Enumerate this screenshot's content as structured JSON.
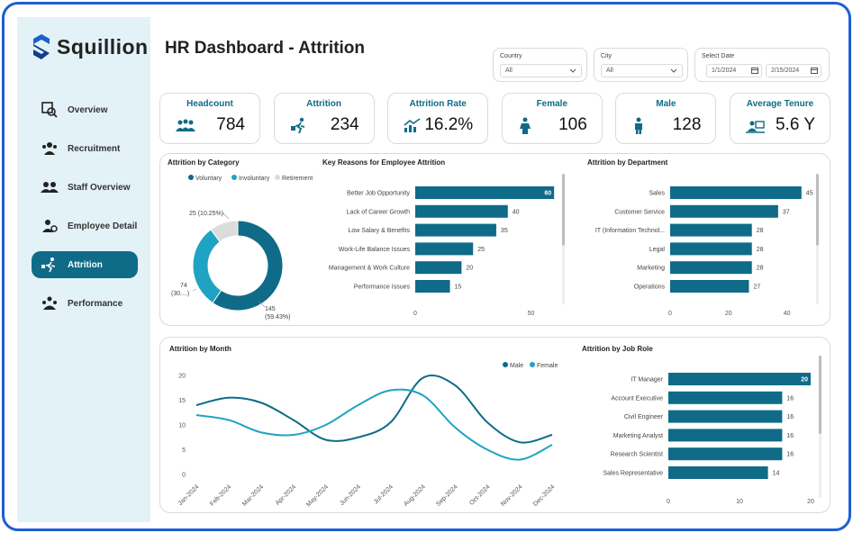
{
  "app": {
    "brand": "Squillion",
    "page_title": "HR Dashboard - Attrition"
  },
  "colors": {
    "primary": "#0f6b88",
    "secondary": "#1fa3c2",
    "retirement": "#dcdcdc",
    "sidebar_bg": "#e3f2f7",
    "frame": "#1b5fd3"
  },
  "nav": {
    "items": [
      {
        "label": "Overview",
        "icon": "overview-icon",
        "active": false
      },
      {
        "label": "Recruitment",
        "icon": "recruitment-icon",
        "active": false
      },
      {
        "label": "Staff Overview",
        "icon": "staff-icon",
        "active": false
      },
      {
        "label": "Employee Detail",
        "icon": "employee-icon",
        "active": false
      },
      {
        "label": "Attrition",
        "icon": "attrition-icon",
        "active": true
      },
      {
        "label": "Performance",
        "icon": "performance-icon",
        "active": false
      }
    ]
  },
  "filters": {
    "country": {
      "label": "Country",
      "value": "All"
    },
    "city": {
      "label": "City",
      "value": "All"
    },
    "date": {
      "label": "Select Date",
      "start": "1/1/2024",
      "end": "2/15/2024"
    }
  },
  "kpis": [
    {
      "title": "Headcount",
      "value": "784",
      "icon": "people-group-icon"
    },
    {
      "title": "Attrition",
      "value": "234",
      "icon": "person-leaving-icon"
    },
    {
      "title": "Attrition Rate",
      "value": "16.2%",
      "icon": "trend-chart-icon"
    },
    {
      "title": "Female",
      "value": "106",
      "icon": "female-icon"
    },
    {
      "title": "Male",
      "value": "128",
      "icon": "male-icon"
    },
    {
      "title": "Average Tenure",
      "value": "5.6 Y",
      "icon": "tenure-icon"
    }
  ],
  "chart_data": [
    {
      "type": "pie",
      "title": "Attrition by Category",
      "legend": [
        "Voluntary",
        "Involuntary",
        "Retirement"
      ],
      "legend_position": "top",
      "slices": [
        {
          "name": "Voluntary",
          "value": 145,
          "label": "145",
          "pct_label": "(59.43%)",
          "color": "#0f6b88"
        },
        {
          "name": "Involuntary",
          "value": 74,
          "label": "74",
          "pct_label": "(30....)",
          "color": "#1fa3c2"
        },
        {
          "name": "Retirement",
          "value": 25,
          "label": "25 (10.25%)",
          "pct_label": "",
          "color": "#dcdcdc"
        }
      ]
    },
    {
      "type": "bar",
      "orientation": "horizontal",
      "title": "Key Reasons for Employee Attrition",
      "categories": [
        "Better Job Opportunity",
        "Lack of Career Growth",
        "Low Salary & Benefits",
        "Work-Life Balance Issues",
        "Management & Work Culture",
        "Performance Issues"
      ],
      "values": [
        60,
        40,
        35,
        25,
        20,
        15
      ],
      "xlim": [
        0,
        65
      ],
      "xticks": [
        0,
        50
      ]
    },
    {
      "type": "bar",
      "orientation": "horizontal",
      "title": "Attrition by Department",
      "categories": [
        "Sales",
        "Customer Service",
        "IT (Information Technol...",
        "Legal",
        "Marketing",
        "Operations"
      ],
      "values": [
        45,
        37,
        28,
        28,
        28,
        27
      ],
      "xlim": [
        0,
        50
      ],
      "xticks": [
        0,
        20,
        40
      ]
    },
    {
      "type": "line",
      "title": "Attrition by Month",
      "legend_position": "top-right",
      "x": [
        "Jan-2024",
        "Feb-2024",
        "Mar-2024",
        "Apr-2024",
        "May-2024",
        "Jun-2024",
        "Jul-2024",
        "Aug-2024",
        "Sep-2024",
        "Oct-2024",
        "Nov-2024",
        "Dec-2024"
      ],
      "ylim": [
        0,
        20
      ],
      "yticks": [
        0,
        5,
        10,
        15,
        20
      ],
      "series": [
        {
          "name": "Male",
          "color": "#0f6b88",
          "values": [
            14,
            15.5,
            14.5,
            11,
            7,
            7.5,
            10.5,
            19.5,
            18,
            10.5,
            6.5,
            8
          ]
        },
        {
          "name": "Female",
          "color": "#1fa3c2",
          "values": [
            12,
            11,
            8.5,
            8,
            10,
            14,
            17,
            16,
            9.5,
            5,
            3,
            6
          ]
        }
      ]
    },
    {
      "type": "bar",
      "orientation": "horizontal",
      "title": "Attrition by Job Role",
      "categories": [
        "IT Manager",
        "Account Executive",
        "Civil Engineer",
        "Marketing Analyst",
        "Research Scientist",
        "Sales Representative"
      ],
      "values": [
        20,
        16,
        16,
        16,
        16,
        14
      ],
      "xlim": [
        0,
        20
      ],
      "xticks": [
        0,
        10,
        20
      ]
    }
  ]
}
